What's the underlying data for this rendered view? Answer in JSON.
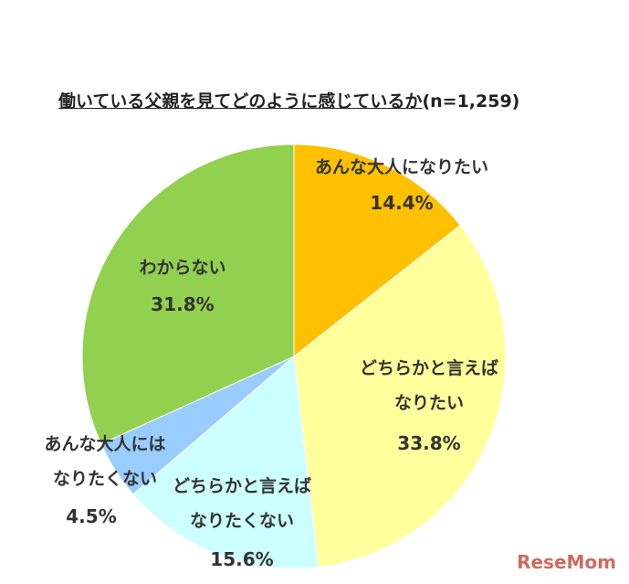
{
  "chart_data": {
    "type": "pie",
    "title": "働いている父親を見てどのように感じているか",
    "subtitle": "(n=1,259)",
    "categories": [
      "あんな大人になりたい",
      "どちらかと言えば\nなりたい",
      "どちらかと言えば\nなりたくない",
      "あんな大人には\nなりたくない",
      "わからない"
    ],
    "values": [
      14.4,
      33.8,
      15.6,
      4.5,
      31.8
    ],
    "value_labels": [
      "14.4%",
      "33.8%",
      "15.6%",
      "4.5%",
      "31.8%"
    ],
    "colors": [
      "#ffc000",
      "#ffff9c",
      "#ccffff",
      "#99ccff",
      "#92d050"
    ]
  },
  "watermark": "ReseMom"
}
